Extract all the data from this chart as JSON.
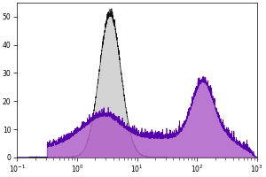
{
  "xlim_log": [
    -1,
    3
  ],
  "ylim": [
    0,
    55
  ],
  "yticks": [
    0,
    10,
    20,
    30,
    40,
    50
  ],
  "xtick_positions_log": [
    -1,
    0,
    1,
    2,
    3
  ],
  "background_color": "#ffffff",
  "gray_fill_color": "#d4d4d4",
  "gray_edge_color": "#111111",
  "purple_fill_color": "#b060c8",
  "purple_edge_color": "#4a0080",
  "purple_line_color": "#5500aa",
  "gray_peak_log": 0.55,
  "gray_sigma": 0.18,
  "gray_peak_height": 50,
  "purple_low_peak_log": 0.45,
  "purple_low_sigma": 0.28,
  "purple_low_height": 8,
  "purple_flat_height": 6.5,
  "purple_high_peak_log": 2.1,
  "purple_high_sigma": 0.18,
  "purple_high_height": 20,
  "n_bins": 300,
  "figsize": [
    3.0,
    2.0
  ],
  "dpi": 100
}
